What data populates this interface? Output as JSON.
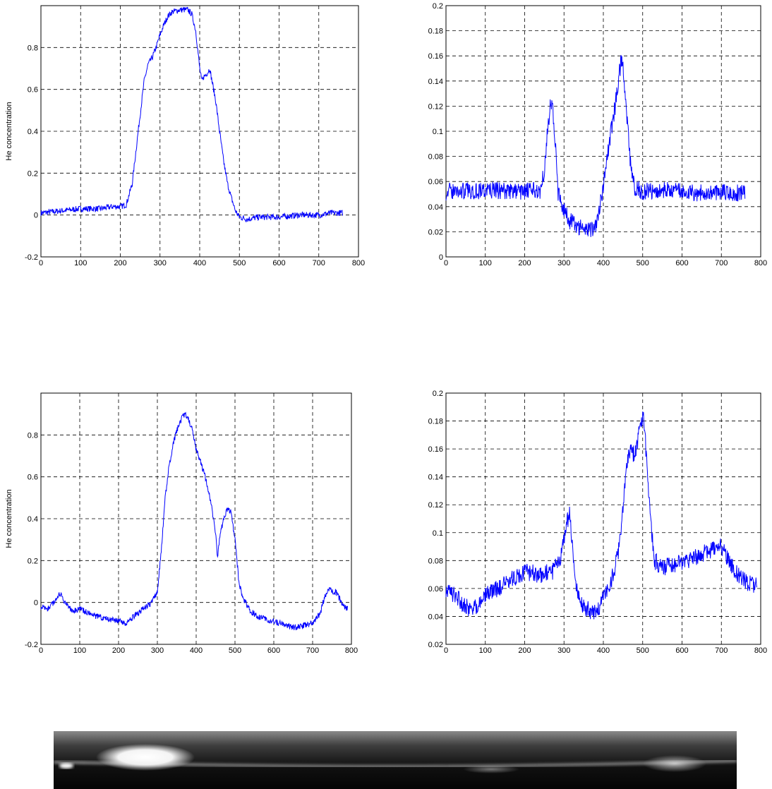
{
  "chart_data": [
    {
      "type": "line",
      "ylabel": "He concentration",
      "xlim": [
        0,
        800
      ],
      "ylim": [
        -0.2,
        1.0
      ],
      "xticks": [
        "0",
        "100",
        "200",
        "300",
        "400",
        "500",
        "600",
        "700",
        "800"
      ],
      "yticks": [
        "-0.2",
        "0",
        "0.2",
        "0.4",
        "0.6",
        "0.8"
      ],
      "grid": true,
      "color": "#0000ff",
      "series": [
        {
          "x": [
            0,
            50,
            100,
            150,
            180,
            200,
            215,
            230,
            245,
            260,
            270,
            280,
            290,
            300,
            310,
            320,
            330,
            340,
            350,
            360,
            370,
            380,
            390,
            400,
            405,
            410,
            420,
            425,
            430,
            440,
            450,
            460,
            470,
            480,
            490,
            500,
            520,
            550,
            600,
            650,
            700,
            730,
            760
          ],
          "y": [
            0.01,
            0.02,
            0.03,
            0.03,
            0.04,
            0.04,
            0.05,
            0.15,
            0.4,
            0.64,
            0.72,
            0.75,
            0.8,
            0.86,
            0.91,
            0.95,
            0.97,
            0.975,
            0.98,
            0.98,
            0.98,
            0.96,
            0.88,
            0.7,
            0.64,
            0.66,
            0.68,
            0.7,
            0.65,
            0.55,
            0.4,
            0.26,
            0.15,
            0.08,
            0.02,
            -0.01,
            -0.02,
            -0.01,
            -0.01,
            0.0,
            0.0,
            0.01,
            0.01
          ]
        }
      ]
    },
    {
      "type": "line",
      "xlim": [
        0,
        800
      ],
      "ylim": [
        0,
        0.2
      ],
      "xticks": [
        "0",
        "100",
        "200",
        "300",
        "400",
        "500",
        "600",
        "700",
        "800"
      ],
      "yticks": [
        "0",
        "0.02",
        "0.04",
        "0.06",
        "0.08",
        "0.1",
        "0.12",
        "0.14",
        "0.16",
        "0.18",
        "0.2"
      ],
      "grid": true,
      "color": "#0000ff",
      "series": [
        {
          "x": [
            0,
            100,
            200,
            240,
            250,
            258,
            265,
            270,
            278,
            285,
            292,
            300,
            310,
            330,
            350,
            370,
            380,
            390,
            400,
            410,
            420,
            430,
            440,
            445,
            450,
            460,
            470,
            480,
            500,
            550,
            600,
            650,
            700,
            760
          ],
          "y": [
            0.052,
            0.053,
            0.052,
            0.053,
            0.07,
            0.1,
            0.12,
            0.123,
            0.09,
            0.05,
            0.045,
            0.038,
            0.03,
            0.025,
            0.023,
            0.022,
            0.025,
            0.04,
            0.055,
            0.08,
            0.1,
            0.12,
            0.145,
            0.155,
            0.15,
            0.11,
            0.07,
            0.055,
            0.052,
            0.053,
            0.052,
            0.051,
            0.052,
            0.05
          ]
        }
      ]
    },
    {
      "type": "line",
      "ylabel": "He concentration",
      "xlim": [
        0,
        800
      ],
      "ylim": [
        -0.2,
        1.0
      ],
      "xticks": [
        "0",
        "100",
        "200",
        "300",
        "400",
        "500",
        "600",
        "700",
        "800"
      ],
      "yticks": [
        "-0.2",
        "0",
        "0.2",
        "0.4",
        "0.6",
        "0.8"
      ],
      "grid": true,
      "color": "#0000ff",
      "series": [
        {
          "x": [
            0,
            20,
            40,
            50,
            60,
            80,
            100,
            120,
            150,
            180,
            200,
            220,
            250,
            280,
            300,
            310,
            320,
            330,
            340,
            350,
            360,
            370,
            380,
            390,
            400,
            410,
            420,
            430,
            440,
            450,
            455,
            460,
            470,
            480,
            490,
            500,
            510,
            520,
            540,
            560,
            600,
            650,
            700,
            720,
            730,
            740,
            760,
            780,
            790
          ],
          "y": [
            -0.02,
            -0.03,
            0.02,
            0.04,
            0.0,
            -0.04,
            -0.03,
            -0.05,
            -0.07,
            -0.08,
            -0.09,
            -0.1,
            -0.05,
            -0.01,
            0.05,
            0.25,
            0.5,
            0.65,
            0.75,
            0.82,
            0.87,
            0.9,
            0.88,
            0.82,
            0.73,
            0.68,
            0.62,
            0.55,
            0.45,
            0.33,
            0.22,
            0.3,
            0.4,
            0.44,
            0.43,
            0.3,
            0.1,
            0.02,
            -0.04,
            -0.07,
            -0.09,
            -0.12,
            -0.1,
            -0.05,
            0.02,
            0.06,
            0.05,
            -0.02,
            -0.03
          ]
        }
      ]
    },
    {
      "type": "line",
      "xlim": [
        0,
        800
      ],
      "ylim": [
        0.02,
        0.2
      ],
      "xticks": [
        "0",
        "100",
        "200",
        "300",
        "400",
        "500",
        "600",
        "700",
        "800"
      ],
      "yticks": [
        "0.02",
        "0.04",
        "0.06",
        "0.08",
        "0.1",
        "0.12",
        "0.14",
        "0.16",
        "0.18",
        "0.2"
      ],
      "grid": true,
      "color": "#0000ff",
      "series": [
        {
          "x": [
            0,
            20,
            40,
            60,
            80,
            100,
            130,
            160,
            200,
            240,
            270,
            290,
            300,
            310,
            315,
            320,
            330,
            340,
            360,
            380,
            390,
            400,
            410,
            420,
            430,
            440,
            450,
            460,
            470,
            480,
            490,
            500,
            505,
            510,
            520,
            530,
            550,
            600,
            650,
            700,
            720,
            740,
            760,
            780,
            790
          ],
          "y": [
            0.06,
            0.055,
            0.05,
            0.045,
            0.048,
            0.055,
            0.06,
            0.065,
            0.072,
            0.07,
            0.072,
            0.08,
            0.095,
            0.11,
            0.115,
            0.095,
            0.065,
            0.05,
            0.045,
            0.042,
            0.045,
            0.055,
            0.06,
            0.065,
            0.075,
            0.09,
            0.12,
            0.15,
            0.16,
            0.155,
            0.17,
            0.185,
            0.175,
            0.15,
            0.11,
            0.08,
            0.075,
            0.078,
            0.085,
            0.09,
            0.08,
            0.07,
            0.065,
            0.062,
            0.063
          ]
        }
      ]
    }
  ]
}
